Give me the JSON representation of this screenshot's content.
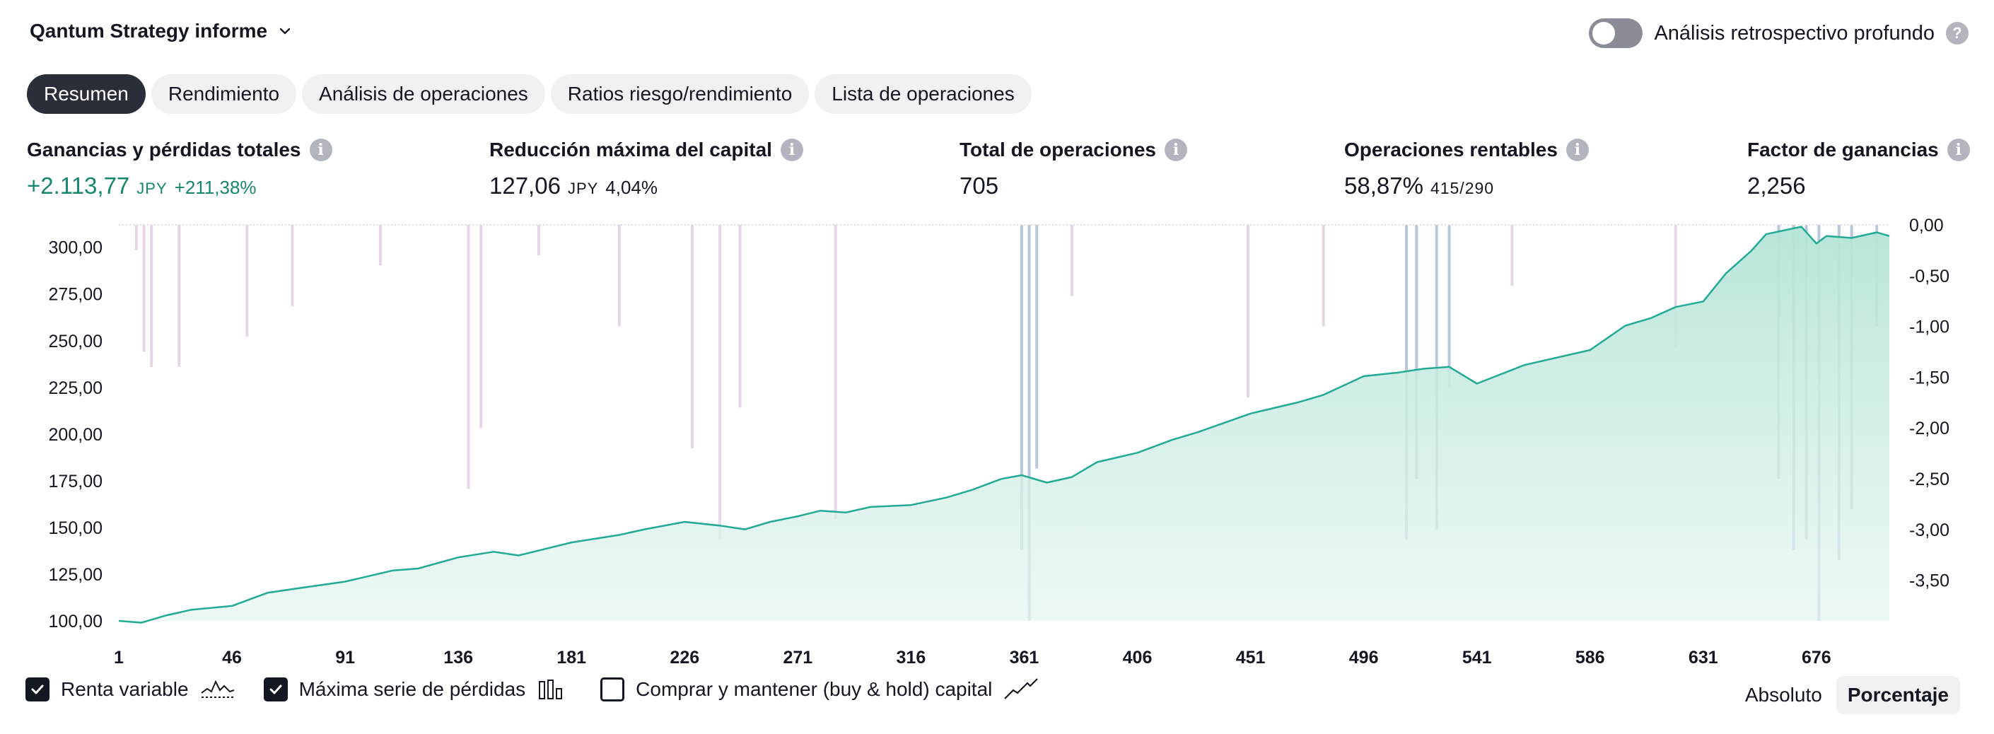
{
  "header": {
    "title": "Qantum Strategy informe",
    "deep_backtesting_label": "Análisis retrospectivo profundo",
    "deep_backtesting_on": false
  },
  "tabs": [
    {
      "label": "Resumen",
      "active": true
    },
    {
      "label": "Rendimiento",
      "active": false
    },
    {
      "label": "Análisis de operaciones",
      "active": false
    },
    {
      "label": "Ratios riesgo/rendimiento",
      "active": false
    },
    {
      "label": "Lista de operaciones",
      "active": false
    }
  ],
  "stats": [
    {
      "label": "Ganancias y pérdidas totales",
      "value": "+2.113,77",
      "unit": "JPY",
      "sub": "+211,38%",
      "positive": true
    },
    {
      "label": "Reducción máxima del capital",
      "value": "127,06",
      "unit": "JPY",
      "sub": "4,04%"
    },
    {
      "label": "Total de operaciones",
      "value": "705"
    },
    {
      "label": "Operaciones rentables",
      "value": "58,87%",
      "ratio": "415/290"
    },
    {
      "label": "Factor de ganancias",
      "value": "2,256"
    }
  ],
  "footer": {
    "checkboxes": [
      {
        "label": "Renta variable",
        "checked": true,
        "icon": "equity-line-icon"
      },
      {
        "label": "Máxima serie de pérdidas",
        "checked": true,
        "icon": "drawdown-bars-icon"
      },
      {
        "label": "Comprar y mantener (buy & hold) capital",
        "checked": false,
        "icon": "buy-hold-line-icon"
      }
    ],
    "modes": [
      {
        "label": "Absoluto",
        "active": false
      },
      {
        "label": "Porcentaje",
        "active": true
      }
    ]
  },
  "chart_data": {
    "type": "line",
    "colors": {
      "equity_line": "#22ab94",
      "equity_fill": "#c8ebe2",
      "drawdown_bars": "#e5d6e6",
      "drawdown_bars_overlap": "#b9c7dc"
    },
    "x_ticks": [
      "1",
      "46",
      "91",
      "136",
      "181",
      "226",
      "271",
      "316",
      "361",
      "406",
      "451",
      "496",
      "541",
      "586",
      "631",
      "676"
    ],
    "x_range": [
      1,
      705
    ],
    "y_left": {
      "ticks": [
        "300,00",
        "275,00",
        "250,00",
        "225,00",
        "200,00",
        "175,00",
        "150,00",
        "125,00",
        "100,00"
      ],
      "range": [
        100,
        312
      ]
    },
    "y_right": {
      "ticks": [
        "0,00",
        "-0,50",
        "-1,00",
        "-1,50",
        "-2,00",
        "-2,50",
        "-3,00",
        "-3,50"
      ],
      "range": [
        -3.9,
        0
      ]
    },
    "series": [
      {
        "name": "Renta variable",
        "axis": "left",
        "x": [
          1,
          10,
          20,
          30,
          46,
          60,
          70,
          91,
          110,
          120,
          136,
          150,
          160,
          181,
          200,
          210,
          226,
          240,
          250,
          260,
          271,
          280,
          290,
          300,
          316,
          330,
          340,
          352,
          360,
          370,
          380,
          390,
          406,
          420,
          430,
          451,
          470,
          480,
          496,
          510,
          520,
          530,
          541,
          560,
          586,
          600,
          610,
          620,
          631,
          640,
          650,
          656,
          663,
          670,
          676,
          680,
          690,
          700,
          705
        ],
        "y": [
          100,
          99,
          103,
          106,
          108,
          115,
          117,
          121,
          127,
          128,
          134,
          137,
          135,
          142,
          146,
          149,
          153,
          151,
          149,
          153,
          156,
          159,
          158,
          161,
          162,
          166,
          170,
          176,
          178,
          174,
          177,
          185,
          190,
          197,
          201,
          211,
          217,
          221,
          231,
          233,
          235,
          236,
          227,
          237,
          245,
          258,
          262,
          268,
          271,
          286,
          298,
          307,
          309,
          311,
          302,
          306,
          305,
          308,
          306
        ]
      },
      {
        "name": "Máxima serie de pérdidas",
        "axis": "right",
        "type": "bar",
        "x": [
          8,
          11,
          14,
          25,
          52,
          70,
          105,
          140,
          145,
          168,
          200,
          229,
          240,
          248,
          286,
          360,
          363,
          366,
          380,
          450,
          480,
          513,
          517,
          525,
          530,
          555,
          620,
          661,
          667,
          672,
          677,
          685,
          690,
          700
        ],
        "y": [
          -0.25,
          -1.25,
          -1.4,
          -1.4,
          -1.1,
          -0.8,
          -0.4,
          -2.6,
          -2.0,
          -0.3,
          -1.0,
          -2.2,
          -3.1,
          -1.8,
          -2.9,
          -3.2,
          -3.9,
          -2.4,
          -0.7,
          -1.7,
          -1.0,
          -3.1,
          -2.5,
          -3.0,
          -1.6,
          -0.6,
          -1.2,
          -2.5,
          -3.2,
          -3.1,
          -3.9,
          -3.3,
          -2.8,
          -1.0
        ]
      }
    ],
    "grid": false,
    "legend": "bottom-left"
  }
}
